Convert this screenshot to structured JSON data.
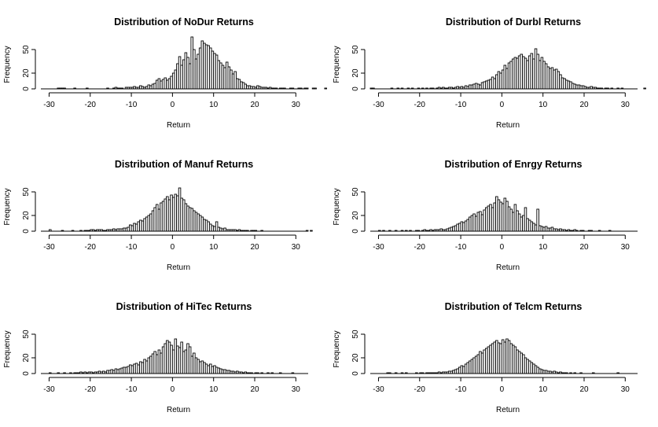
{
  "chart_data": [
    {
      "type": "bar",
      "title": "Distribution of  NoDur Returns",
      "xlabel": "Return",
      "ylabel": "Frequency",
      "xlim": [
        -32,
        33
      ],
      "ylim": [
        0,
        66
      ],
      "x_ticks": [
        -30,
        -20,
        -10,
        0,
        10,
        20,
        30
      ],
      "y_ticks": [
        0,
        20,
        50
      ],
      "bin_start": -28,
      "bin_width": 0.5,
      "values": [
        1,
        1,
        1,
        1,
        0,
        0,
        0,
        0,
        1,
        0,
        0,
        0,
        0,
        0,
        1,
        0,
        0,
        0,
        0,
        0,
        0,
        0,
        0,
        0,
        1,
        0,
        0,
        1,
        2,
        1,
        1,
        1,
        0,
        2,
        2,
        2,
        2,
        3,
        2,
        2,
        4,
        3,
        2,
        3,
        5,
        4,
        6,
        7,
        11,
        13,
        10,
        12,
        14,
        11,
        13,
        16,
        20,
        24,
        32,
        41,
        30,
        37,
        46,
        40,
        32,
        66,
        50,
        38,
        44,
        52,
        61,
        58,
        56,
        55,
        52,
        48,
        45,
        43,
        36,
        33,
        30,
        27,
        34,
        28,
        24,
        19,
        22,
        13,
        12,
        9,
        8,
        6,
        4,
        4,
        3,
        3,
        2,
        4,
        3,
        2,
        2,
        2,
        1,
        2,
        1,
        1,
        1,
        0,
        1,
        1,
        1,
        0,
        0,
        1,
        1,
        0,
        0,
        1,
        1,
        0,
        1,
        1,
        0,
        0,
        1,
        1,
        0,
        0,
        0,
        0,
        1
      ]
    },
    {
      "type": "bar",
      "title": "Distribution of  Durbl Returns",
      "xlabel": "Return",
      "ylabel": "Frequency",
      "xlim": [
        -32,
        33
      ],
      "ylim": [
        0,
        66
      ],
      "x_ticks": [
        -30,
        -20,
        -10,
        0,
        10,
        20,
        30
      ],
      "y_ticks": [
        0,
        20,
        50
      ],
      "bin_start": -32,
      "bin_width": 0.5,
      "values": [
        1,
        1,
        0,
        0,
        0,
        0,
        0,
        0,
        0,
        0,
        1,
        0,
        0,
        1,
        0,
        1,
        0,
        0,
        1,
        0,
        1,
        0,
        0,
        1,
        0,
        1,
        0,
        1,
        0,
        1,
        1,
        0,
        1,
        2,
        1,
        2,
        1,
        1,
        2,
        2,
        1,
        2,
        3,
        2,
        3,
        2,
        4,
        3,
        5,
        5,
        6,
        7,
        6,
        5,
        8,
        9,
        10,
        11,
        12,
        15,
        13,
        18,
        22,
        20,
        24,
        30,
        26,
        33,
        35,
        38,
        40,
        39,
        42,
        44,
        41,
        39,
        36,
        42,
        45,
        38,
        51,
        44,
        36,
        40,
        35,
        32,
        28,
        26,
        27,
        24,
        25,
        22,
        18,
        14,
        13,
        11,
        10,
        9,
        7,
        6,
        5,
        5,
        4,
        4,
        3,
        2,
        2,
        3,
        2,
        2,
        1,
        1,
        1,
        0,
        1,
        1,
        0,
        1,
        0,
        0,
        1,
        0,
        1,
        0,
        0,
        0,
        0,
        0,
        0,
        0,
        0,
        0,
        0,
        1
      ]
    },
    {
      "type": "bar",
      "title": "Distribution of  Manuf Returns",
      "xlabel": "Return",
      "ylabel": "Frequency",
      "xlim": [
        -32,
        33
      ],
      "ylim": [
        0,
        66
      ],
      "x_ticks": [
        -30,
        -20,
        -10,
        0,
        10,
        20,
        30
      ],
      "y_ticks": [
        0,
        20,
        50
      ],
      "bin_start": -30,
      "bin_width": 0.5,
      "values": [
        2,
        0,
        0,
        0,
        0,
        0,
        1,
        0,
        0,
        0,
        0,
        1,
        0,
        0,
        0,
        1,
        0,
        1,
        1,
        1,
        2,
        2,
        1,
        2,
        2,
        2,
        1,
        1,
        2,
        2,
        2,
        3,
        2,
        3,
        3,
        3,
        4,
        4,
        5,
        8,
        7,
        10,
        9,
        12,
        14,
        13,
        16,
        18,
        20,
        22,
        26,
        30,
        34,
        28,
        36,
        38,
        41,
        44,
        40,
        46,
        43,
        47,
        45,
        55,
        42,
        40,
        35,
        32,
        30,
        29,
        26,
        24,
        22,
        20,
        18,
        15,
        14,
        12,
        9,
        7,
        6,
        12,
        5,
        4,
        3,
        4,
        2,
        2,
        2,
        2,
        2,
        1,
        2,
        1,
        1,
        1,
        1,
        0,
        1,
        1,
        1,
        0,
        0,
        1,
        0,
        0,
        0,
        0,
        0,
        0,
        0,
        0,
        0,
        0,
        0,
        0,
        0,
        0,
        0,
        0,
        0,
        0,
        0,
        0,
        0,
        1,
        0,
        1
      ]
    },
    {
      "type": "bar",
      "title": "Distribution of  Enrgy Returns",
      "xlabel": "Return",
      "ylabel": "Frequency",
      "xlim": [
        -32,
        33
      ],
      "ylim": [
        0,
        66
      ],
      "x_ticks": [
        -30,
        -20,
        -10,
        0,
        10,
        20,
        30
      ],
      "y_ticks": [
        0,
        20,
        50
      ],
      "bin_start": -30,
      "bin_width": 0.5,
      "values": [
        1,
        0,
        1,
        0,
        0,
        1,
        0,
        0,
        1,
        0,
        0,
        1,
        0,
        1,
        0,
        1,
        0,
        0,
        1,
        1,
        0,
        1,
        2,
        1,
        1,
        2,
        1,
        2,
        2,
        2,
        3,
        2,
        2,
        3,
        4,
        5,
        6,
        7,
        9,
        10,
        12,
        11,
        13,
        15,
        18,
        20,
        22,
        19,
        24,
        25,
        21,
        27,
        30,
        32,
        34,
        30,
        36,
        44,
        40,
        37,
        35,
        42,
        38,
        31,
        28,
        24,
        34,
        26,
        22,
        18,
        20,
        30,
        16,
        14,
        12,
        10,
        8,
        28,
        7,
        6,
        5,
        6,
        4,
        4,
        5,
        3,
        3,
        2,
        3,
        2,
        2,
        1,
        2,
        1,
        1,
        2,
        1,
        0,
        1,
        1,
        0,
        0,
        1,
        1,
        0,
        0,
        0,
        1,
        0,
        0,
        0,
        0,
        1
      ]
    },
    {
      "type": "bar",
      "title": "Distribution of  HiTec Returns",
      "xlabel": "Return",
      "ylabel": "Frequency",
      "xlim": [
        -32,
        33
      ],
      "ylim": [
        0,
        66
      ],
      "x_ticks": [
        -30,
        -20,
        -10,
        0,
        10,
        20,
        30
      ],
      "y_ticks": [
        0,
        20,
        50
      ],
      "bin_start": -30,
      "bin_width": 0.5,
      "values": [
        1,
        0,
        0,
        0,
        1,
        0,
        0,
        1,
        0,
        0,
        1,
        0,
        1,
        1,
        1,
        2,
        1,
        2,
        1,
        2,
        2,
        1,
        2,
        2,
        3,
        2,
        3,
        2,
        4,
        4,
        5,
        4,
        6,
        5,
        6,
        7,
        8,
        8,
        9,
        11,
        10,
        12,
        13,
        11,
        15,
        14,
        18,
        16,
        20,
        22,
        25,
        28,
        24,
        30,
        26,
        34,
        38,
        42,
        40,
        36,
        30,
        44,
        35,
        33,
        40,
        28,
        30,
        38,
        34,
        22,
        26,
        20,
        18,
        15,
        16,
        14,
        12,
        10,
        12,
        9,
        10,
        8,
        7,
        6,
        5,
        5,
        4,
        4,
        3,
        3,
        2,
        3,
        2,
        2,
        1,
        2,
        1,
        1,
        1,
        0,
        1,
        1,
        0,
        1,
        0,
        0,
        1,
        0,
        1,
        0,
        0,
        0,
        1,
        0,
        0,
        0,
        0,
        0,
        1
      ]
    },
    {
      "type": "bar",
      "title": "Distribution of  Telcm Returns",
      "xlabel": "Return",
      "ylabel": "Frequency",
      "xlim": [
        -32,
        33
      ],
      "ylim": [
        0,
        66
      ],
      "x_ticks": [
        -30,
        -20,
        -10,
        0,
        10,
        20,
        30
      ],
      "y_ticks": [
        0,
        20,
        50
      ],
      "bin_start": -28,
      "bin_width": 0.5,
      "values": [
        1,
        1,
        0,
        0,
        1,
        0,
        0,
        1,
        0,
        1,
        0,
        0,
        0,
        0,
        1,
        0,
        1,
        1,
        0,
        1,
        1,
        1,
        1,
        1,
        1,
        2,
        1,
        2,
        2,
        2,
        3,
        3,
        4,
        5,
        6,
        8,
        10,
        9,
        12,
        14,
        16,
        18,
        20,
        22,
        24,
        28,
        26,
        30,
        32,
        34,
        36,
        38,
        40,
        42,
        39,
        38,
        43,
        40,
        44,
        42,
        38,
        36,
        34,
        30,
        28,
        26,
        24,
        20,
        18,
        16,
        14,
        12,
        10,
        8,
        6,
        5,
        4,
        4,
        3,
        3,
        2,
        3,
        2,
        1,
        2,
        1,
        1,
        1,
        0,
        1,
        0,
        1,
        0,
        0,
        1,
        0,
        0,
        0,
        0,
        0,
        1,
        0,
        0,
        0,
        0,
        0,
        0,
        0,
        0,
        0,
        0,
        0,
        1
      ]
    }
  ]
}
